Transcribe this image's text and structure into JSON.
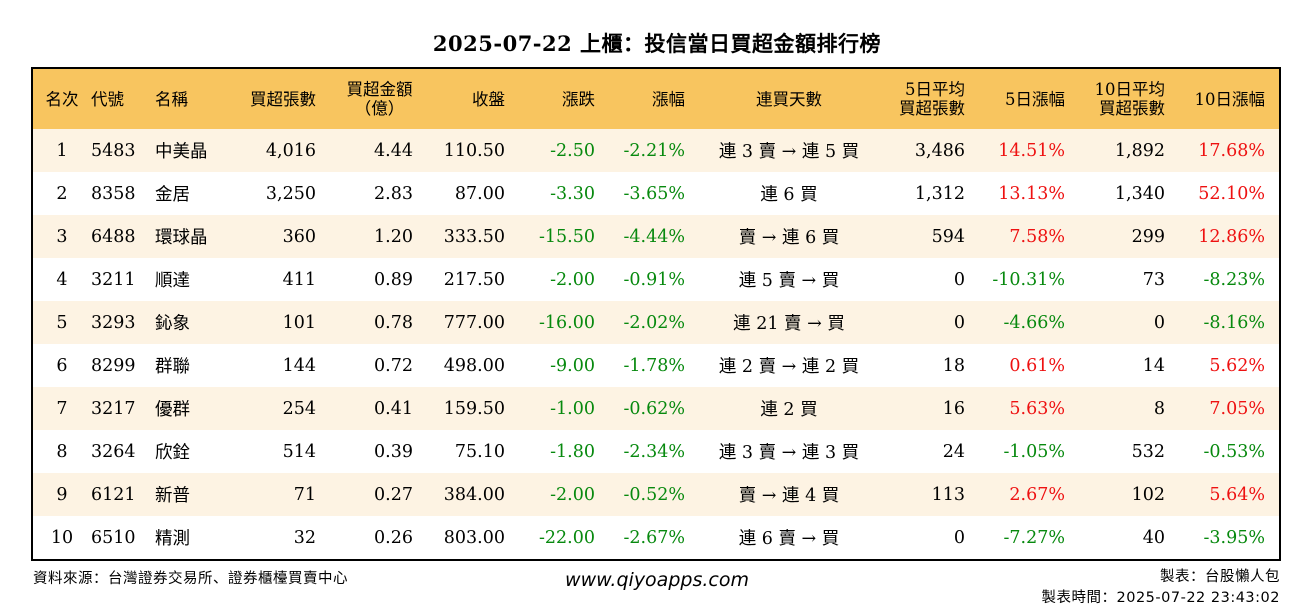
{
  "title": "2025-07-22 上櫃：投信當日買超金額排行榜",
  "headers": {
    "rank": "名次",
    "code": "代號",
    "name": "名稱",
    "net_lots": "買超張數",
    "net_amount_l1": "買超金額",
    "net_amount_l2": "（億）",
    "close": "收盤",
    "change": "漲跌",
    "change_pct": "漲幅",
    "streak": "連買天數",
    "avg5_l1": "5日平均",
    "avg5_l2": "買超張數",
    "pct5": "5日漲幅",
    "avg10_l1": "10日平均",
    "avg10_l2": "買超張數",
    "pct10": "10日漲幅"
  },
  "rows": [
    {
      "rank": "1",
      "code": "5483",
      "name": "中美晶",
      "lots": "4,016",
      "amount": "4.44",
      "close": "110.50",
      "change": "-2.50",
      "change_pct": "-2.21%",
      "streak": "連 3 賣 → 連 5 買",
      "avg5": "3,486",
      "pct5": "14.51%",
      "avg10": "1,892",
      "pct10": "17.68%"
    },
    {
      "rank": "2",
      "code": "8358",
      "name": "金居",
      "lots": "3,250",
      "amount": "2.83",
      "close": "87.00",
      "change": "-3.30",
      "change_pct": "-3.65%",
      "streak": "連 6 買",
      "avg5": "1,312",
      "pct5": "13.13%",
      "avg10": "1,340",
      "pct10": "52.10%"
    },
    {
      "rank": "3",
      "code": "6488",
      "name": "環球晶",
      "lots": "360",
      "amount": "1.20",
      "close": "333.50",
      "change": "-15.50",
      "change_pct": "-4.44%",
      "streak": "賣 → 連 6 買",
      "avg5": "594",
      "pct5": "7.58%",
      "avg10": "299",
      "pct10": "12.86%"
    },
    {
      "rank": "4",
      "code": "3211",
      "name": "順達",
      "lots": "411",
      "amount": "0.89",
      "close": "217.50",
      "change": "-2.00",
      "change_pct": "-0.91%",
      "streak": "連 5 賣 → 買",
      "avg5": "0",
      "pct5": "-10.31%",
      "avg10": "73",
      "pct10": "-8.23%"
    },
    {
      "rank": "5",
      "code": "3293",
      "name": "鈊象",
      "lots": "101",
      "amount": "0.78",
      "close": "777.00",
      "change": "-16.00",
      "change_pct": "-2.02%",
      "streak": "連 21 賣 → 買",
      "avg5": "0",
      "pct5": "-4.66%",
      "avg10": "0",
      "pct10": "-8.16%"
    },
    {
      "rank": "6",
      "code": "8299",
      "name": "群聯",
      "lots": "144",
      "amount": "0.72",
      "close": "498.00",
      "change": "-9.00",
      "change_pct": "-1.78%",
      "streak": "連 2 賣 → 連 2 買",
      "avg5": "18",
      "pct5": "0.61%",
      "avg10": "14",
      "pct10": "5.62%"
    },
    {
      "rank": "7",
      "code": "3217",
      "name": "優群",
      "lots": "254",
      "amount": "0.41",
      "close": "159.50",
      "change": "-1.00",
      "change_pct": "-0.62%",
      "streak": "連 2 買",
      "avg5": "16",
      "pct5": "5.63%",
      "avg10": "8",
      "pct10": "7.05%"
    },
    {
      "rank": "8",
      "code": "3264",
      "name": "欣銓",
      "lots": "514",
      "amount": "0.39",
      "close": "75.10",
      "change": "-1.80",
      "change_pct": "-2.34%",
      "streak": "連 3 賣 → 連 3 買",
      "avg5": "24",
      "pct5": "-1.05%",
      "avg10": "532",
      "pct10": "-0.53%"
    },
    {
      "rank": "9",
      "code": "6121",
      "name": "新普",
      "lots": "71",
      "amount": "0.27",
      "close": "384.00",
      "change": "-2.00",
      "change_pct": "-0.52%",
      "streak": "賣 → 連 4 買",
      "avg5": "113",
      "pct5": "2.67%",
      "avg10": "102",
      "pct10": "5.64%"
    },
    {
      "rank": "10",
      "code": "6510",
      "name": "精測",
      "lots": "32",
      "amount": "0.26",
      "close": "803.00",
      "change": "-22.00",
      "change_pct": "-2.67%",
      "streak": "連 6 賣 → 買",
      "avg5": "0",
      "pct5": "-7.27%",
      "avg10": "40",
      "pct10": "-3.95%"
    }
  ],
  "colors": {
    "header_bg": "#f8c55f",
    "stripe_bg": "#fdf3e3",
    "negative": "#07890e",
    "positive": "#ee1111"
  },
  "footer": {
    "source": "資料來源：台灣證券交易所、證券櫃檯買賣中心",
    "site": "www.qiyoapps.com",
    "maker": "製表：台股懶人包",
    "made_time": "製表時間：2025-07-22 23:43:02"
  }
}
